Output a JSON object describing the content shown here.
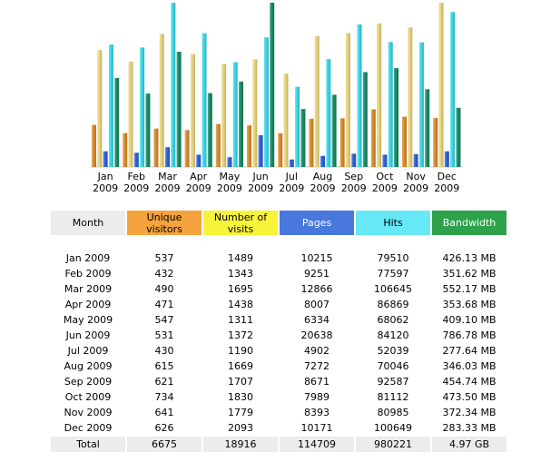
{
  "colors": {
    "unique": "#f5a33c",
    "visits": "#f7f23a",
    "pages": "#4877dd",
    "hits": "#67e8f7",
    "bandwidth": "#2ea24b",
    "header_gray": "#ececec"
  },
  "table": {
    "headers": {
      "month": "Month",
      "unique_line1": "Unique",
      "unique_line2": "visitors",
      "visits_line1": "Number of",
      "visits_line2": "visits",
      "pages": "Pages",
      "hits": "Hits",
      "bandwidth": "Bandwidth"
    },
    "rows": [
      {
        "month": "Jan 2009",
        "unique": "537",
        "visits": "1489",
        "pages": "10215",
        "hits": "79510",
        "bandwidth": "426.13 MB"
      },
      {
        "month": "Feb 2009",
        "unique": "432",
        "visits": "1343",
        "pages": "9251",
        "hits": "77597",
        "bandwidth": "351.62 MB"
      },
      {
        "month": "Mar 2009",
        "unique": "490",
        "visits": "1695",
        "pages": "12866",
        "hits": "106645",
        "bandwidth": "552.17 MB"
      },
      {
        "month": "Apr 2009",
        "unique": "471",
        "visits": "1438",
        "pages": "8007",
        "hits": "86869",
        "bandwidth": "353.68 MB"
      },
      {
        "month": "May 2009",
        "unique": "547",
        "visits": "1311",
        "pages": "6334",
        "hits": "68062",
        "bandwidth": "409.10 MB"
      },
      {
        "month": "Jun 2009",
        "unique": "531",
        "visits": "1372",
        "pages": "20638",
        "hits": "84120",
        "bandwidth": "786.78 MB"
      },
      {
        "month": "Jul 2009",
        "unique": "430",
        "visits": "1190",
        "pages": "4902",
        "hits": "52039",
        "bandwidth": "277.64 MB"
      },
      {
        "month": "Aug 2009",
        "unique": "615",
        "visits": "1669",
        "pages": "7272",
        "hits": "70046",
        "bandwidth": "346.03 MB"
      },
      {
        "month": "Sep 2009",
        "unique": "621",
        "visits": "1707",
        "pages": "8671",
        "hits": "92587",
        "bandwidth": "454.74 MB"
      },
      {
        "month": "Oct 2009",
        "unique": "734",
        "visits": "1830",
        "pages": "7989",
        "hits": "81112",
        "bandwidth": "473.50 MB"
      },
      {
        "month": "Nov 2009",
        "unique": "641",
        "visits": "1779",
        "pages": "8393",
        "hits": "80985",
        "bandwidth": "372.34 MB"
      },
      {
        "month": "Dec 2009",
        "unique": "626",
        "visits": "2093",
        "pages": "10171",
        "hits": "100649",
        "bandwidth": "283.33 MB"
      }
    ],
    "total": {
      "month": "Total",
      "unique": "6675",
      "visits": "18916",
      "pages": "114709",
      "hits": "980221",
      "bandwidth": "4.97 GB"
    }
  },
  "chart_data": {
    "type": "bar",
    "categories": [
      "Jan 2009",
      "Feb 2009",
      "Mar 2009",
      "Apr 2009",
      "May 2009",
      "Jun 2009",
      "Jul 2009",
      "Aug 2009",
      "Sep 2009",
      "Oct 2009",
      "Nov 2009",
      "Dec 2009"
    ],
    "category_lines": [
      [
        "Jan",
        "2009"
      ],
      [
        "Feb",
        "2009"
      ],
      [
        "Mar",
        "2009"
      ],
      [
        "Apr",
        "2009"
      ],
      [
        "May",
        "2009"
      ],
      [
        "Jun",
        "2009"
      ],
      [
        "Jul",
        "2009"
      ],
      [
        "Aug",
        "2009"
      ],
      [
        "Sep",
        "2009"
      ],
      [
        "Oct",
        "2009"
      ],
      [
        "Nov",
        "2009"
      ],
      [
        "Dec",
        "2009"
      ]
    ],
    "series": [
      {
        "values": [
          537,
          432,
          490,
          471,
          547,
          531,
          430,
          615,
          621,
          734,
          641,
          626
        ],
        "color": "#d98a2a",
        "scale_group": "visitors"
      },
      {
        "values": [
          1489,
          1343,
          1695,
          1438,
          1311,
          1372,
          1190,
          1669,
          1707,
          1830,
          1779,
          2093
        ],
        "color": "#e8d27a",
        "scale_group": "visitors"
      },
      {
        "values": [
          10215,
          9251,
          12866,
          8007,
          6334,
          20638,
          4902,
          7272,
          8671,
          7989,
          8393,
          10171
        ],
        "color": "#2f5fd6",
        "scale_group": "hits"
      },
      {
        "values": [
          79510,
          77597,
          106645,
          86869,
          68062,
          84120,
          52039,
          70046,
          92587,
          81112,
          80985,
          100649
        ],
        "color": "#38d6e6",
        "scale_group": "hits"
      },
      {
        "values": [
          426.13,
          351.62,
          552.17,
          353.68,
          409.1,
          786.78,
          277.64,
          346.03,
          454.74,
          473.5,
          372.34,
          283.33
        ],
        "color": "#148a63",
        "scale_group": "bandwidth"
      }
    ],
    "legend": "none",
    "grid": false
  }
}
